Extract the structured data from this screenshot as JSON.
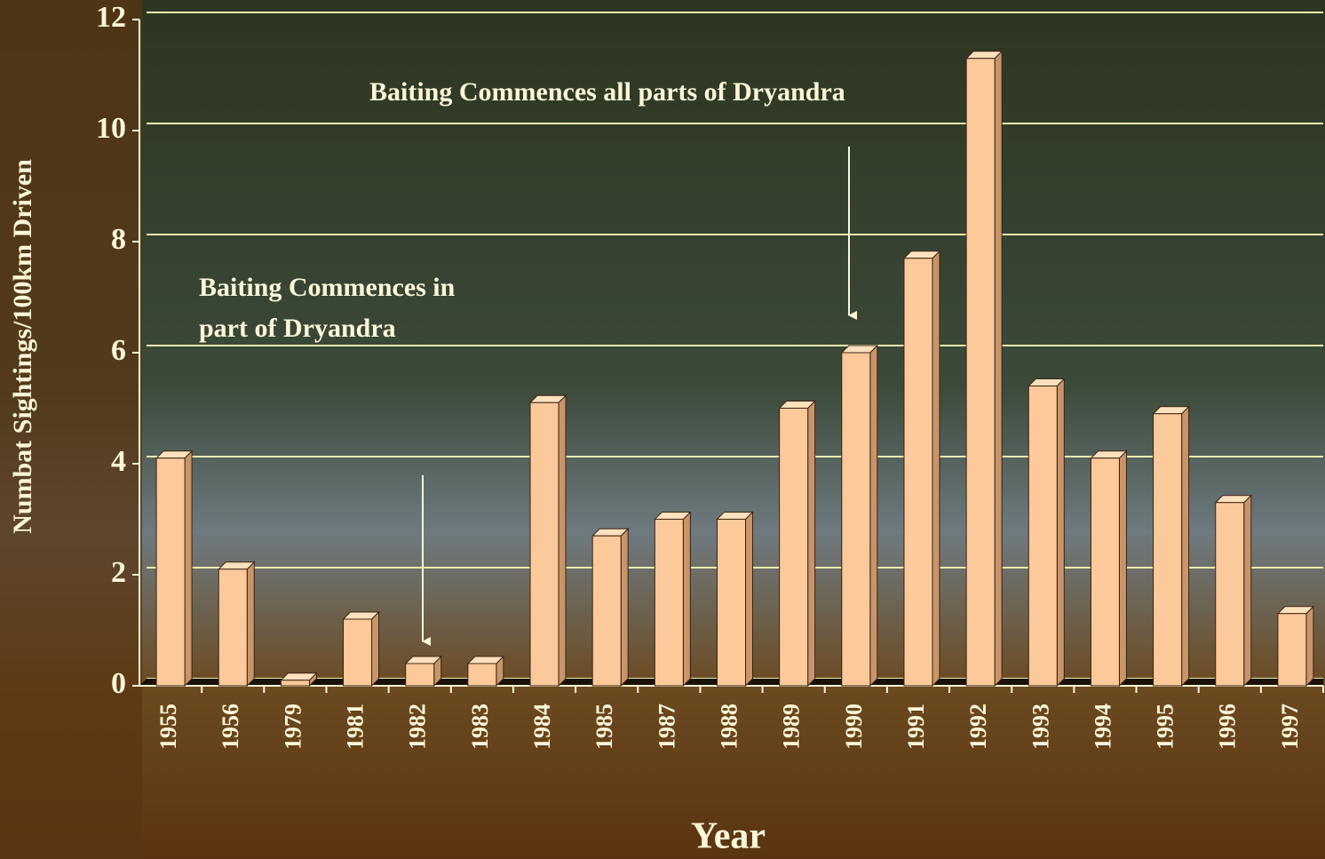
{
  "chart_data": {
    "type": "bar",
    "y_label": "Numbat Sightings/100km Driven",
    "x_label": "Year",
    "annotations": [
      [
        "Baiting Commences all parts of Dryandra"
      ],
      [
        "Baiting Commences in",
        "part of Dryandra"
      ]
    ],
    "categories": [
      "1955",
      "1956",
      "1979",
      "1981",
      "1982",
      "1983",
      "1984",
      "1985",
      "1987",
      "1988",
      "1989",
      "1990",
      "1991",
      "1992",
      "1993",
      "1994",
      "1995",
      "1996",
      "1997"
    ],
    "values": [
      4.1,
      2.1,
      0.1,
      1.2,
      0.4,
      0.4,
      5.1,
      2.7,
      3.0,
      3.0,
      5.0,
      6.0,
      7.7,
      11.3,
      5.4,
      4.1,
      4.9,
      3.3,
      1.3
    ],
    "color": "#fcc99a",
    "ylim": [
      0,
      12
    ],
    "yticks": [
      0,
      2,
      4,
      6,
      8,
      10,
      12
    ],
    "grid": true
  }
}
